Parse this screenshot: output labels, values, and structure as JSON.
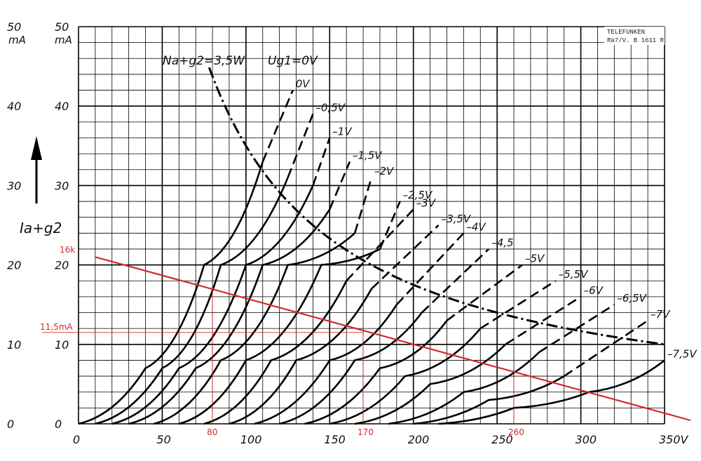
{
  "chart_data": {
    "type": "line",
    "stamp": [
      "TELEFUNKEN",
      "Ra7/V. B 1611 R"
    ],
    "y_tick_labels": [
      "0",
      "10",
      "20",
      "30",
      "40",
      "50"
    ],
    "y_unit": "mA",
    "x_tick_labels": [
      "0",
      "50",
      "100",
      "150",
      "200",
      "250",
      "300",
      "350V"
    ],
    "y_axis_label": "Ia+g2",
    "xlim": [
      0,
      350
    ],
    "ylim": [
      0,
      50
    ],
    "grid": true,
    "power_hyperbola": {
      "label": "Na+g2=3,5W",
      "watts": 3.5
    },
    "grid_voltage_label_header": "Ug1=0V",
    "series": [
      {
        "name": "0V",
        "ug1": 0.0,
        "points": [
          [
            0,
            0
          ],
          [
            40,
            7
          ],
          [
            75,
            20
          ],
          [
            110,
            33
          ]
        ],
        "dashed_from": [
          110,
          33
        ],
        "dashed_to": [
          128,
          42
        ]
      },
      {
        "name": "-0,5V",
        "ug1": -0.5,
        "points": [
          [
            10,
            0
          ],
          [
            50,
            7
          ],
          [
            85,
            20
          ],
          [
            125,
            31
          ]
        ],
        "dashed_from": [
          125,
          31
        ],
        "dashed_to": [
          140,
          39
        ]
      },
      {
        "name": "-1V",
        "ug1": -1.0,
        "points": [
          [
            20,
            0
          ],
          [
            60,
            7
          ],
          [
            100,
            20
          ],
          [
            140,
            30
          ]
        ],
        "dashed_from": [
          140,
          30
        ],
        "dashed_to": [
          150,
          36
        ]
      },
      {
        "name": "-1,5V",
        "ug1": -1.5,
        "points": [
          [
            30,
            0
          ],
          [
            70,
            7
          ],
          [
            110,
            20
          ],
          [
            150,
            27
          ]
        ],
        "dashed_from": [
          150,
          27
        ],
        "dashed_to": [
          162,
          33
        ]
      },
      {
        "name": "-2V",
        "ug1": -2.0,
        "points": [
          [
            45,
            0
          ],
          [
            85,
            8
          ],
          [
            125,
            20
          ],
          [
            165,
            24
          ]
        ],
        "dashed_from": [
          165,
          24
        ],
        "dashed_to": [
          175,
          31
        ]
      },
      {
        "name": "-2,5V",
        "ug1": -2.5,
        "points": [
          [
            60,
            0
          ],
          [
            100,
            8
          ],
          [
            145,
            20
          ],
          [
            180,
            22
          ]
        ],
        "dashed_from": [
          180,
          22
        ],
        "dashed_to": [
          192,
          28
        ]
      },
      {
        "name": "-3V",
        "ug1": -3.0,
        "points": [
          [
            75,
            0
          ],
          [
            115,
            8
          ],
          [
            160,
            18
          ]
        ],
        "dashed_from": [
          160,
          18
        ],
        "dashed_to": [
          200,
          27
        ]
      },
      {
        "name": "-3,5V",
        "ug1": -3.5,
        "points": [
          [
            90,
            0
          ],
          [
            130,
            8
          ],
          [
            175,
            17
          ]
        ],
        "dashed_from": [
          175,
          17
        ],
        "dashed_to": [
          215,
          25
        ]
      },
      {
        "name": "-4V",
        "ug1": -4.0,
        "points": [
          [
            105,
            0
          ],
          [
            150,
            8
          ],
          [
            190,
            15
          ]
        ],
        "dashed_from": [
          190,
          15
        ],
        "dashed_to": [
          230,
          24
        ]
      },
      {
        "name": "-4,5",
        "ug1": -4.5,
        "points": [
          [
            120,
            0
          ],
          [
            165,
            8
          ],
          [
            205,
            14
          ]
        ],
        "dashed_from": [
          205,
          14
        ],
        "dashed_to": [
          245,
          22
        ]
      },
      {
        "name": "-5V",
        "ug1": -5.0,
        "points": [
          [
            135,
            0
          ],
          [
            180,
            7
          ],
          [
            220,
            13
          ]
        ],
        "dashed_from": [
          220,
          13
        ],
        "dashed_to": [
          265,
          20
        ]
      },
      {
        "name": "-5,5V",
        "ug1": -5.5,
        "points": [
          [
            150,
            0
          ],
          [
            195,
            6
          ],
          [
            240,
            12
          ]
        ],
        "dashed_from": [
          240,
          12
        ],
        "dashed_to": [
          285,
          18
        ]
      },
      {
        "name": "-6V",
        "ug1": -6.0,
        "points": [
          [
            165,
            0
          ],
          [
            210,
            5
          ],
          [
            255,
            10
          ]
        ],
        "dashed_from": [
          255,
          10
        ],
        "dashed_to": [
          300,
          16
        ]
      },
      {
        "name": "-6,5V",
        "ug1": -6.5,
        "points": [
          [
            185,
            0
          ],
          [
            230,
            4
          ],
          [
            275,
            9
          ]
        ],
        "dashed_from": [
          275,
          9
        ],
        "dashed_to": [
          320,
          15
        ]
      },
      {
        "name": "-7V",
        "ug1": -7.0,
        "points": [
          [
            200,
            0
          ],
          [
            245,
            3
          ],
          [
            290,
            6
          ]
        ],
        "dashed_from": [
          290,
          6
        ],
        "dashed_to": [
          340,
          13
        ]
      },
      {
        "name": "-7,5V",
        "ug1": -7.5,
        "points": [
          [
            215,
            0
          ],
          [
            260,
            2
          ],
          [
            305,
            4
          ],
          [
            350,
            8
          ]
        ]
      }
    ],
    "load_line": {
      "label": "16k",
      "points": [
        [
          10,
          21
        ],
        [
          355,
          0
        ]
      ],
      "markers": [
        {
          "x": 80,
          "label": "80"
        },
        {
          "x": 170,
          "label": "170"
        },
        {
          "x": 260,
          "label": "260"
        }
      ],
      "quiescent_current_label": "11,5mA",
      "quiescent_current": 11.5
    }
  }
}
